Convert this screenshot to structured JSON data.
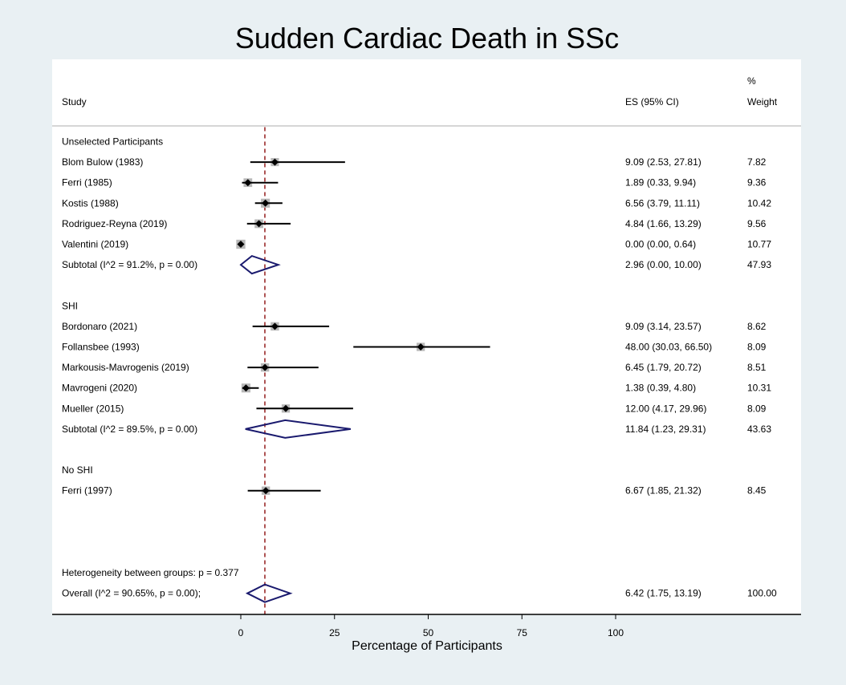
{
  "title": "Sudden Cardiac Death in SSc",
  "header": {
    "study": "Study",
    "es": "ES (95% CI)",
    "weight_line1": "%",
    "weight_line2": "Weight"
  },
  "chart_data": {
    "type": "forest",
    "title": "Sudden Cardiac Death in SSc",
    "xlabel": "Percentage of Participants",
    "xlim": [
      0,
      100
    ],
    "xticks": [
      0,
      25,
      50,
      75,
      100
    ],
    "reference_line": 6.42,
    "groups": [
      {
        "name": "Unselected Participants",
        "studies": [
          {
            "label": "Blom Bulow (1983)",
            "es": 9.09,
            "lo": 2.53,
            "hi": 27.81,
            "text": "9.09 (2.53, 27.81)",
            "weight": "7.82"
          },
          {
            "label": "Ferri (1985)",
            "es": 1.89,
            "lo": 0.33,
            "hi": 9.94,
            "text": "1.89 (0.33, 9.94)",
            "weight": "9.36"
          },
          {
            "label": "Kostis (1988)",
            "es": 6.56,
            "lo": 3.79,
            "hi": 11.11,
            "text": "6.56 (3.79, 11.11)",
            "weight": "10.42"
          },
          {
            "label": "Rodriguez-Reyna (2019)",
            "es": 4.84,
            "lo": 1.66,
            "hi": 13.29,
            "text": "4.84 (1.66, 13.29)",
            "weight": "9.56"
          },
          {
            "label": "Valentini (2019)",
            "es": 0.0,
            "lo": 0.0,
            "hi": 0.64,
            "text": "0.00 (0.00, 0.64)",
            "weight": "10.77"
          }
        ],
        "subtotal": {
          "label": "Subtotal  (I^2 = 91.2%, p = 0.00)",
          "es": 2.96,
          "lo": 0.0,
          "hi": 10.0,
          "text": "2.96 (0.00, 10.00)",
          "weight": "47.93"
        }
      },
      {
        "name": "SHI",
        "studies": [
          {
            "label": "Bordonaro (2021)",
            "es": 9.09,
            "lo": 3.14,
            "hi": 23.57,
            "text": "9.09 (3.14, 23.57)",
            "weight": "8.62"
          },
          {
            "label": "Follansbee (1993)",
            "es": 48.0,
            "lo": 30.03,
            "hi": 66.5,
            "text": "48.00 (30.03, 66.50)",
            "weight": "8.09"
          },
          {
            "label": "Markousis-Mavrogenis (2019)",
            "es": 6.45,
            "lo": 1.79,
            "hi": 20.72,
            "text": "6.45 (1.79, 20.72)",
            "weight": "8.51"
          },
          {
            "label": "Mavrogeni (2020)",
            "es": 1.38,
            "lo": 0.39,
            "hi": 4.8,
            "text": "1.38 (0.39, 4.80)",
            "weight": "10.31"
          },
          {
            "label": "Mueller (2015)",
            "es": 12.0,
            "lo": 4.17,
            "hi": 29.96,
            "text": "12.00 (4.17, 29.96)",
            "weight": "8.09"
          }
        ],
        "subtotal": {
          "label": "Subtotal  (I^2 = 89.5%, p = 0.00)",
          "es": 11.84,
          "lo": 1.23,
          "hi": 29.31,
          "text": "11.84 (1.23, 29.31)",
          "weight": "43.63"
        }
      },
      {
        "name": "No SHI",
        "studies": [
          {
            "label": "Ferri (1997)",
            "es": 6.67,
            "lo": 1.85,
            "hi": 21.32,
            "text": "6.67 (1.85, 21.32)",
            "weight": "8.45"
          }
        ],
        "subtotal": null
      }
    ],
    "heterogeneity_label": "Heterogeneity between groups: p = 0.377",
    "overall": {
      "label": "Overall  (I^2 = 90.65%, p = 0.00);",
      "es": 6.42,
      "lo": 1.75,
      "hi": 13.19,
      "text": "6.42 (1.75, 13.19)",
      "weight": "100.00"
    }
  },
  "colors": {
    "background": "#e9f0f3",
    "panel": "#ffffff",
    "diamond": "#1a1a6e",
    "reference_line": "#9b2a2a",
    "weight_box": "#b8b8b8",
    "ci_line": "#000000"
  }
}
